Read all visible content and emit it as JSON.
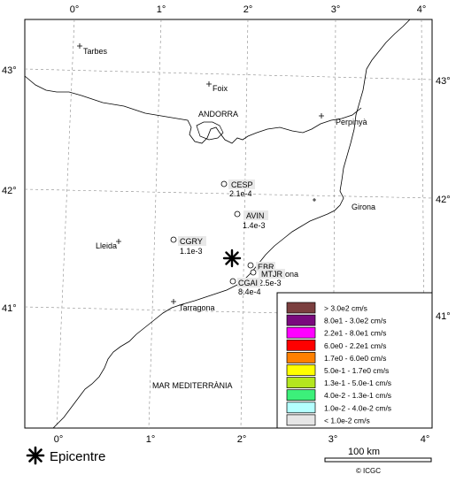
{
  "map": {
    "top_ticks": [
      "0°",
      "1°",
      "2°",
      "3°",
      "4°"
    ],
    "bottom_ticks": [
      "0°",
      "1°",
      "2°",
      "3°",
      "4°"
    ],
    "left_ticks": [
      "43°",
      "42°",
      "41°"
    ],
    "right_ticks": [
      "43°",
      "42°",
      "41°"
    ],
    "places": {
      "tarbes": "Tarbes",
      "foix": "Foix",
      "andorra": "ANDORRA",
      "perpinya": "Perpinyà",
      "girona": "Girona",
      "lleida": "Lleida",
      "tarragona": "Tarragona",
      "barcelona_tail": "ona",
      "sea": "MAR MEDITERRÀNIA"
    },
    "stations": [
      {
        "code": "CESP",
        "value": "2.1e-4"
      },
      {
        "code": "AVIN",
        "value": "1.4e-3"
      },
      {
        "code": "CGRY",
        "value": "1.1e-3"
      },
      {
        "code": "EBR",
        "value": ""
      },
      {
        "code": "MTJR",
        "value": "2.5e-3"
      },
      {
        "code": "CGAI",
        "value": "8.4e-4"
      }
    ]
  },
  "legend": {
    "items": [
      {
        "label": "> 3.0e2 cm/s",
        "color": "#7b3f3f"
      },
      {
        "label": "8.0e1 - 3.0e2 cm/s",
        "color": "#7a0a7e"
      },
      {
        "label": "2.2e1 - 8.0e1 cm/s",
        "color": "#ff00ff"
      },
      {
        "label": "6.0e0 - 2.2e1 cm/s",
        "color": "#ff0000"
      },
      {
        "label": "1.7e0 - 6.0e0 cm/s",
        "color": "#ff8000"
      },
      {
        "label": "5.0e-1 - 1.7e0 cm/s",
        "color": "#ffff00"
      },
      {
        "label": "1.3e-1 - 5.0e-1 cm/s",
        "color": "#b4e61e"
      },
      {
        "label": "4.0e-2 - 1.3e-1 cm/s",
        "color": "#3cf07a"
      },
      {
        "label": "1.0e-2 - 4.0e-2 cm/s",
        "color": "#b4ffff"
      },
      {
        "label": "< 1.0e-2 cm/s",
        "color": "#e6e6e6"
      }
    ]
  },
  "epicentre": {
    "label": "Epicentre"
  },
  "scale": {
    "label": "100 km"
  },
  "credit": "© ICGC"
}
